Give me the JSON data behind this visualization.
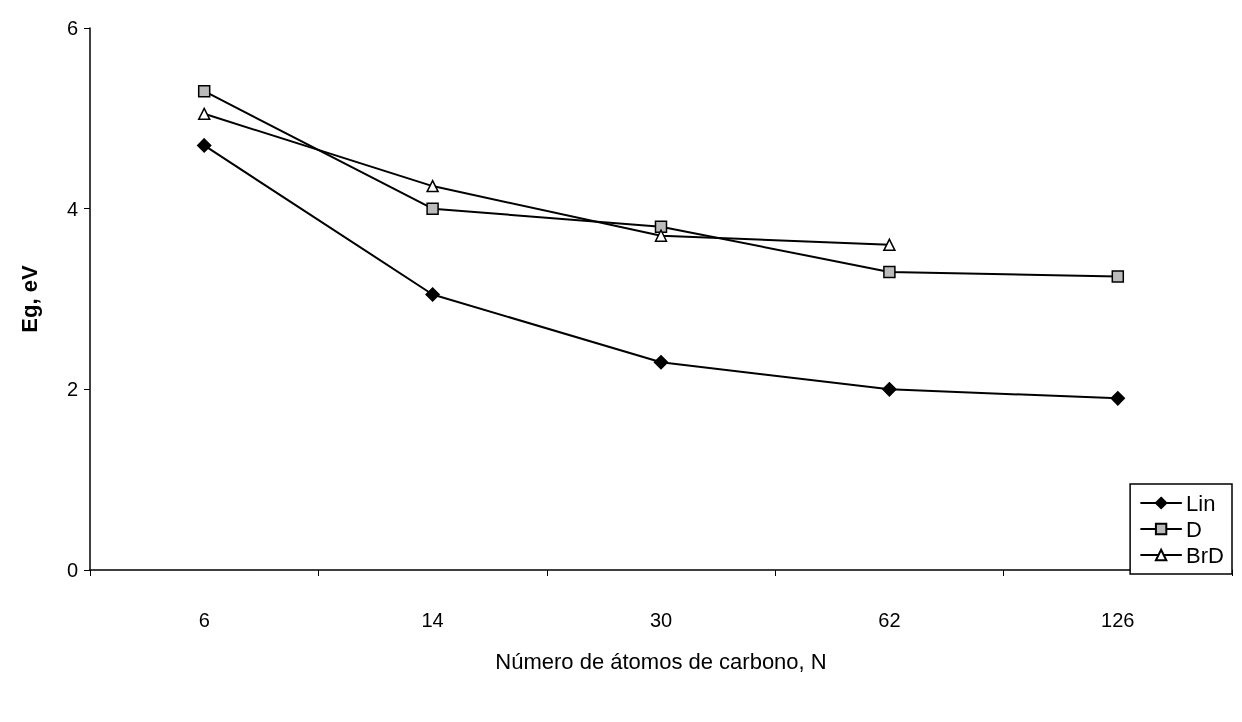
{
  "chart_data": {
    "type": "line",
    "xlabel": "Número de átomos de carbono, N",
    "ylabel": "Eg, eV",
    "categories": [
      "6",
      "14",
      "30",
      "62",
      "126"
    ],
    "series": [
      {
        "name": "Lin",
        "color": "#000000",
        "marker": "diamond",
        "values": [
          4.7,
          3.05,
          2.3,
          2.0,
          1.9
        ]
      },
      {
        "name": "D",
        "color": "#000000",
        "marker": "square",
        "values": [
          5.3,
          4.0,
          3.8,
          3.3,
          3.25
        ]
      },
      {
        "name": "BrD",
        "color": "#000000",
        "marker": "triangle",
        "values": [
          5.05,
          4.25,
          3.7,
          3.6,
          null
        ]
      }
    ],
    "ylim": [
      0,
      6
    ],
    "yticks": [
      0,
      2,
      4,
      6
    ],
    "grid": false,
    "legend": "bottom right",
    "line_style": "solid"
  }
}
